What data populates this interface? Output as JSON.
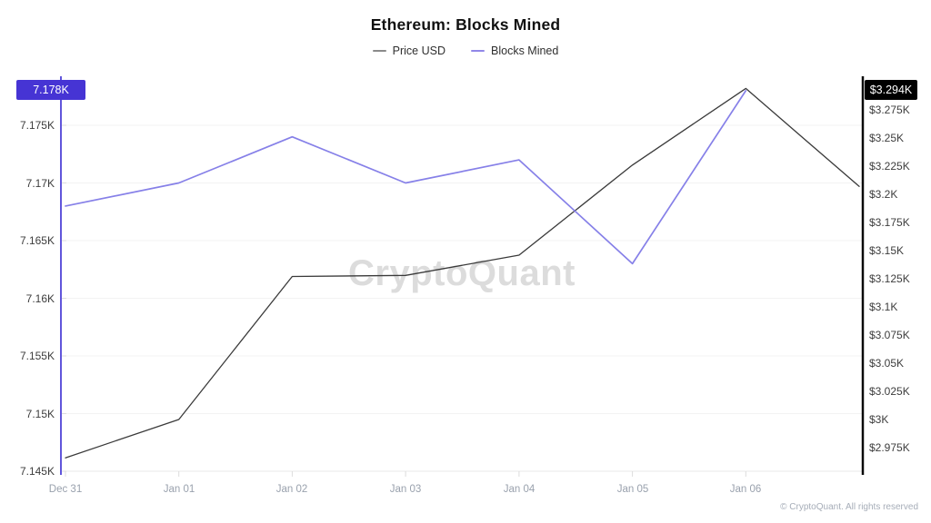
{
  "title": "Ethereum: Blocks Mined",
  "legend": {
    "position": "top",
    "items": [
      {
        "label": "Price USD",
        "swatch_color": "#8a8a8a"
      },
      {
        "label": "Blocks Mined",
        "swatch_color": "#9187e8"
      }
    ]
  },
  "badges": {
    "left": {
      "text": "7.178K",
      "bg": "#4634d4",
      "fg": "#ffffff"
    },
    "right": {
      "text": "$3.294K",
      "bg": "#000000",
      "fg": "#ffffff"
    }
  },
  "watermark": "CryptoQuant",
  "footer": "© CryptoQuant. All rights reserved",
  "chart_data": {
    "type": "line",
    "title": "Ethereum: Blocks Mined",
    "grid": true,
    "legend_position": "top",
    "categories": [
      "Dec 31",
      "Jan 01",
      "Jan 02",
      "Jan 03",
      "Jan 04",
      "Jan 05",
      "Jan 06",
      ""
    ],
    "series": [
      {
        "name": "Price USD",
        "axis": "right",
        "color": "#3a3a3a",
        "stroke_width": 1.3,
        "values": [
          2966,
          3000,
          3127,
          3128,
          3146,
          3226,
          3294,
          3207
        ]
      },
      {
        "name": "Blocks Mined",
        "axis": "left",
        "color": "#8680e8",
        "stroke_width": 1.7,
        "values": [
          7168,
          7170,
          7174,
          7170,
          7172,
          7163,
          7178,
          null
        ]
      }
    ],
    "left_axis": {
      "title": "Blocks Mined",
      "axis_color": "#6156db",
      "current_value_badge": "7.178K",
      "range": [
        7145,
        7178
      ],
      "tick_labels": [
        "7.175K",
        "7.17K",
        "7.165K",
        "7.16K",
        "7.155K",
        "7.15K",
        "7.145K"
      ],
      "tick_values": [
        7175,
        7170,
        7165,
        7160,
        7155,
        7150,
        7145
      ]
    },
    "right_axis": {
      "title": "Price USD",
      "axis_color": "#0a0a0a",
      "current_value_badge": "$3.294K",
      "range": [
        2975,
        3294
      ],
      "tick_labels": [
        "$3.275K",
        "$3.25K",
        "$3.225K",
        "$3.2K",
        "$3.175K",
        "$3.15K",
        "$3.125K",
        "$3.1K",
        "$3.075K",
        "$3.05K",
        "$3.025K",
        "$3K",
        "$2.975K"
      ],
      "tick_values": [
        3275,
        3250,
        3225,
        3200,
        3175,
        3150,
        3125,
        3100,
        3075,
        3050,
        3025,
        3000,
        2975
      ]
    }
  }
}
